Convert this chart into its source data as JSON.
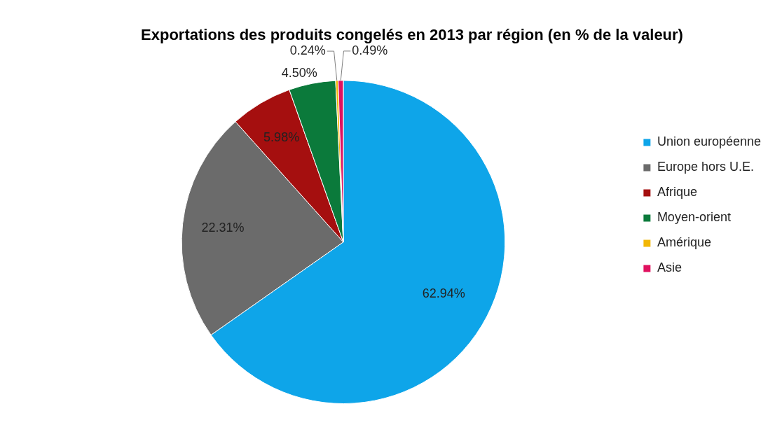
{
  "chart_data": {
    "type": "pie",
    "title": "Exportations des produits congelés en 2013 par région (en % de la valeur)",
    "categories": [
      "Union européenne",
      "Europe hors U.E.",
      "Afrique",
      "Moyen-orient",
      "Amérique",
      "Asie"
    ],
    "values": [
      62.94,
      22.31,
      5.98,
      4.5,
      0.24,
      0.49
    ],
    "colors": [
      "#0ea5e9",
      "#6b6b6b",
      "#a50f0f",
      "#0b7a3b",
      "#f2b705",
      "#e0115f"
    ],
    "value_labels": [
      "62.94%",
      "22.31%",
      "5.98%",
      "4.50%",
      "0.24%",
      "0.49%"
    ],
    "legend": "right"
  }
}
